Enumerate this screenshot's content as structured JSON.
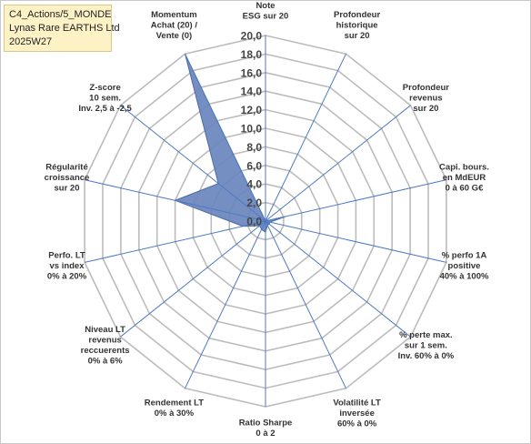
{
  "info": {
    "line1": "C4_Actions/5_MONDE",
    "line2": "Lynas Rare EARTHS Ltd",
    "line3": "2025W27"
  },
  "chart_data": {
    "type": "radar",
    "rmin": 0,
    "rmax": 20,
    "ticks": [
      "0,0",
      "2,0",
      "4,0",
      "6,0",
      "8,0",
      "10,0",
      "12,0",
      "14,0",
      "16,0",
      "18,0",
      "20,0"
    ],
    "axes": [
      [
        "Note",
        "ESG sur 20"
      ],
      [
        "Profondeur",
        "historique",
        "sur 20"
      ],
      [
        "Profondeur",
        "revenus",
        "sur 20"
      ],
      [
        "Capi. bours.",
        "en MdEUR",
        "0 à 60 G€"
      ],
      [
        "% perfo 1A",
        "positive",
        "40% à 100%"
      ],
      [
        "% perte max.",
        "sur 1 sem.",
        "Inv. 60% à 0%"
      ],
      [
        "Volatilité LT",
        "inversée",
        "60% à 0%"
      ],
      [
        "Ratio Sharpe",
        "0 à 2"
      ],
      [
        "Rendement LT",
        "0% à 30%"
      ],
      [
        "Niveau LT",
        "revenus",
        "reccuerents",
        "0% à 6%"
      ],
      [
        "Perfo. LT",
        "vs index",
        "0% à 20%"
      ],
      [
        "Régularité",
        "croissance",
        "sur 20"
      ],
      [
        "Z-score",
        "10 sem.",
        "Inv. 2,5 à -2,5"
      ],
      [
        "Momentum",
        "Achat (20) /",
        "Vente (0)"
      ]
    ],
    "series": [
      {
        "values": [
          0,
          0,
          0,
          2.2,
          0.5,
          0.5,
          0.5,
          1.2,
          1.0,
          0.8,
          2.5,
          10.0,
          6.5,
          20.0
        ]
      }
    ],
    "colors": {
      "fill": "#6a86bd",
      "stroke": "#4a6aa8",
      "grid": "#bcbcbc",
      "spoke": "#4f7ac1"
    },
    "grid": true
  }
}
